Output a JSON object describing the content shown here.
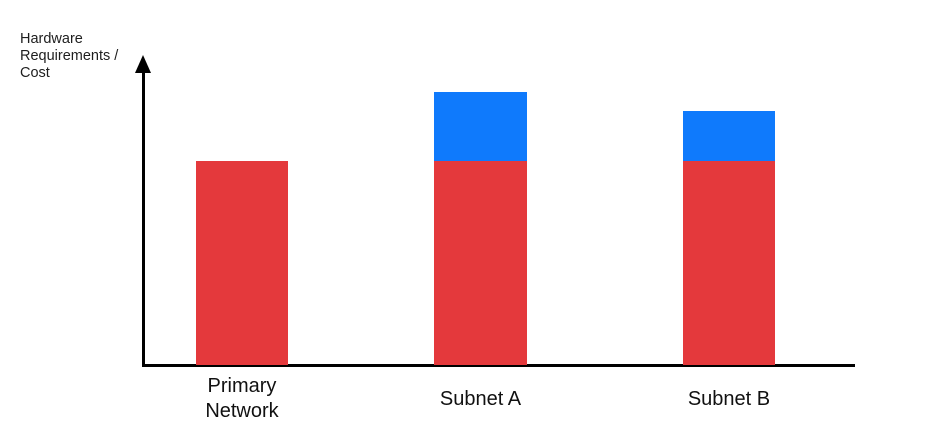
{
  "window": {
    "background": "#FFFFFF"
  },
  "chart": {
    "y_axis_label": "Hardware\nRequirements /\nCost",
    "axis_color": "#000000",
    "label_color": "#1E1E1E"
  },
  "chart_data": {
    "type": "bar",
    "stacked": true,
    "title": "",
    "xlabel": "",
    "ylabel": "Hardware Requirements / Cost",
    "categories": [
      "Primary Network",
      "Subnet A",
      "Subnet B"
    ],
    "series": [
      {
        "name": "red",
        "color": "#E4393C",
        "values": [
          1,
          1,
          1
        ]
      },
      {
        "name": "blue",
        "color": "#0F7AFC",
        "values": [
          0,
          0.34,
          0.245
        ]
      }
    ],
    "value_units": "relative units (no numeric axis shown; red base bar = 1)",
    "ylim": [
      0,
      1.55
    ],
    "legend": false,
    "grid": false,
    "x_ticks": false,
    "y_ticks": false,
    "y_axis_arrow": true
  }
}
